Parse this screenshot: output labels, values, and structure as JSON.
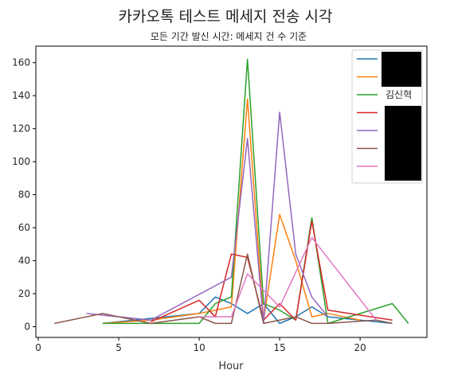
{
  "chart_data": {
    "type": "line",
    "title": "카카오톡 테스트 메세지 전송 시각",
    "subtitle": "모든 기간 발신 시간: 메세지 건 수 기준",
    "xlabel": "Hour",
    "ylabel": "",
    "xlim": [
      -0.15,
      24.15
    ],
    "ylim": [
      -6.5,
      170
    ],
    "xticks": [
      0,
      5,
      10,
      15,
      20
    ],
    "yticks": [
      0,
      20,
      40,
      60,
      80,
      100,
      120,
      140,
      160
    ],
    "grid": false,
    "legend_position": "top-right",
    "series": [
      {
        "name": "",
        "redacted": true,
        "color": "#1f77b4",
        "x": [
          4,
          7,
          10,
          11,
          12,
          13,
          14,
          15,
          16,
          17,
          18,
          22
        ],
        "y": [
          2,
          5,
          8,
          18,
          14,
          8,
          14,
          2,
          6,
          12,
          6,
          2
        ]
      },
      {
        "name": "",
        "redacted": true,
        "color": "#ff7f0e",
        "x": [
          4,
          7,
          10,
          11,
          12,
          13,
          14,
          15,
          16,
          17,
          18,
          20
        ],
        "y": [
          2,
          4,
          8,
          10,
          12,
          138,
          4,
          68,
          40,
          6,
          8,
          4
        ]
      },
      {
        "name": "김신혁",
        "redacted": false,
        "color": "#2ca02c",
        "x": [
          4,
          7,
          10,
          11,
          12,
          13,
          14,
          15,
          16,
          17,
          18,
          22,
          23
        ],
        "y": [
          2,
          2,
          2,
          14,
          18,
          162,
          14,
          10,
          4,
          66,
          2,
          14,
          2
        ]
      },
      {
        "name": "",
        "redacted": true,
        "color": "#d62728",
        "x": [
          7,
          10,
          11,
          12,
          13,
          14,
          15,
          16,
          17,
          18,
          22
        ],
        "y": [
          3,
          16,
          6,
          44,
          42,
          4,
          14,
          4,
          64,
          10,
          4
        ]
      },
      {
        "name": "",
        "redacted": true,
        "color": "#9467bd",
        "x": [
          3,
          7,
          12,
          13,
          14,
          15,
          16,
          17,
          18
        ],
        "y": [
          8,
          4,
          30,
          114,
          2,
          130,
          44,
          18,
          6
        ]
      },
      {
        "name": "",
        "redacted": true,
        "color": "#8c564b",
        "x": [
          1,
          4,
          7,
          10,
          11,
          12,
          13,
          14,
          16,
          17,
          18,
          21,
          22
        ],
        "y": [
          2,
          8,
          2,
          6,
          2,
          2,
          44,
          2,
          6,
          2,
          2,
          4,
          2
        ]
      },
      {
        "name": "",
        "redacted": true,
        "color": "#e377c2",
        "x": [
          10,
          12,
          13,
          14,
          15,
          17,
          21
        ],
        "y": [
          6,
          6,
          32,
          22,
          12,
          54,
          4
        ]
      }
    ]
  }
}
